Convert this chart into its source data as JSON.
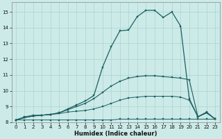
{
  "xlabel": "Humidex (Indice chaleur)",
  "bg_color": "#cceae8",
  "line_color": "#1a6060",
  "grid_color": "#aad4d0",
  "xlim": [
    -0.5,
    23.5
  ],
  "ylim": [
    8.0,
    15.6
  ],
  "xticks": [
    0,
    1,
    2,
    3,
    4,
    5,
    6,
    7,
    8,
    9,
    10,
    11,
    12,
    13,
    14,
    15,
    16,
    17,
    18,
    19,
    20,
    21,
    22,
    23
  ],
  "yticks": [
    8,
    9,
    10,
    11,
    12,
    13,
    14,
    15
  ],
  "curve_flat1": {
    "x": [
      0,
      1,
      2,
      3,
      4,
      5,
      6,
      7,
      8,
      9,
      10,
      11,
      12,
      13,
      14,
      15,
      16,
      17,
      18,
      19,
      20,
      21,
      22,
      23
    ],
    "y": [
      8.15,
      8.15,
      8.15,
      8.15,
      8.15,
      8.15,
      8.15,
      8.15,
      8.15,
      8.15,
      8.15,
      8.15,
      8.2,
      8.2,
      8.2,
      8.2,
      8.2,
      8.2,
      8.2,
      8.2,
      8.2,
      8.2,
      8.2,
      8.2
    ]
  },
  "curve_flat2": {
    "x": [
      0,
      1,
      2,
      3,
      4,
      5,
      6,
      7,
      8,
      9,
      10,
      11,
      12,
      13,
      14,
      15,
      16,
      17,
      18,
      19,
      20,
      21,
      22,
      23
    ],
    "y": [
      8.15,
      8.35,
      8.45,
      8.45,
      8.5,
      8.55,
      8.65,
      8.7,
      8.75,
      8.85,
      9.0,
      9.2,
      9.4,
      9.55,
      9.6,
      9.65,
      9.65,
      9.65,
      9.65,
      9.6,
      9.4,
      8.35,
      8.6,
      8.2
    ]
  },
  "curve_mid": {
    "x": [
      0,
      1,
      2,
      3,
      4,
      5,
      6,
      7,
      8,
      9,
      10,
      11,
      12,
      13,
      14,
      15,
      16,
      17,
      18,
      19,
      20,
      21,
      22,
      23
    ],
    "y": [
      8.15,
      8.3,
      8.4,
      8.45,
      8.5,
      8.6,
      8.8,
      9.0,
      9.2,
      9.5,
      9.9,
      10.3,
      10.6,
      10.8,
      10.9,
      10.95,
      10.95,
      10.9,
      10.85,
      10.8,
      10.7,
      8.35,
      8.6,
      8.2
    ]
  },
  "curve_main": {
    "x": [
      0,
      1,
      2,
      3,
      4,
      5,
      6,
      7,
      8,
      9,
      10,
      11,
      12,
      13,
      14,
      15,
      16,
      17,
      18,
      19,
      20,
      21,
      22,
      23
    ],
    "y": [
      8.15,
      8.3,
      8.4,
      8.45,
      8.5,
      8.6,
      8.85,
      9.1,
      9.35,
      9.7,
      11.5,
      12.8,
      13.8,
      13.85,
      14.7,
      15.1,
      15.1,
      14.65,
      15.0,
      14.1,
      9.5,
      8.35,
      8.65,
      8.2
    ]
  }
}
